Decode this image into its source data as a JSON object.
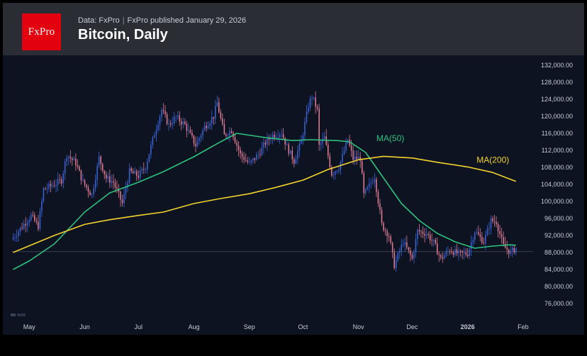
{
  "header": {
    "logo_text": "FxPro",
    "data_source": "Data: FxPro",
    "published": "FxPro published January 29, 2026",
    "title": "Bitcoin, Daily"
  },
  "colors": {
    "background": "#0d1320",
    "header_bg": "#2a2d33",
    "logo_red": "#e3000f",
    "candle_up": "#3b63d6",
    "candle_down": "#e07b93",
    "ma50": "#2ec27e",
    "ma200": "#f2d22e",
    "axis_text": "#c8ccd4"
  },
  "chart_data": {
    "type": "candlestick",
    "title": "Bitcoin, Daily",
    "ylim": [
      74000,
      133000
    ],
    "y_ticks": [
      {
        "value": 132000,
        "label": "132,000.00"
      },
      {
        "value": 128000,
        "label": "128,000.00"
      },
      {
        "value": 124000,
        "label": "124,000.00"
      },
      {
        "value": 120000,
        "label": "120,000.00"
      },
      {
        "value": 116000,
        "label": "116,000.00"
      },
      {
        "value": 112000,
        "label": "112,000.00"
      },
      {
        "value": 108000,
        "label": "108,000.00"
      },
      {
        "value": 104000,
        "label": "104,000.00"
      },
      {
        "value": 100000,
        "label": "100,000.00"
      },
      {
        "value": 96000,
        "label": "96,000.00"
      },
      {
        "value": 92000,
        "label": "92,000.00"
      },
      {
        "value": 88000,
        "label": "88,000.00"
      },
      {
        "value": 84000,
        "label": "84,000.00"
      },
      {
        "value": 80000,
        "label": "80,000.00"
      },
      {
        "value": 76000,
        "label": "76,000.00"
      }
    ],
    "x_labels": [
      {
        "date": "2025-05-01",
        "label": "May",
        "bold": false
      },
      {
        "date": "2025-06-01",
        "label": "Jun",
        "bold": false
      },
      {
        "date": "2025-07-01",
        "label": "Jul",
        "bold": false
      },
      {
        "date": "2025-08-01",
        "label": "Aug",
        "bold": false
      },
      {
        "date": "2025-09-01",
        "label": "Sep",
        "bold": false
      },
      {
        "date": "2025-10-01",
        "label": "Oct",
        "bold": false
      },
      {
        "date": "2025-11-01",
        "label": "Nov",
        "bold": false
      },
      {
        "date": "2025-12-01",
        "label": "Dec",
        "bold": false
      },
      {
        "date": "2026-01-01",
        "label": "2026",
        "bold": true
      },
      {
        "date": "2026-02-01",
        "label": "Feb",
        "bold": false
      }
    ],
    "x_range": [
      "2025-04-21",
      "2026-02-05"
    ],
    "reference_price": 88200,
    "annotations": [
      {
        "label": "MA(50)",
        "series": "MA(50)"
      },
      {
        "label": "MA(200)",
        "series": "MA(200)"
      }
    ],
    "close_path": [
      [
        "2025-04-22",
        91500
      ],
      [
        "2025-04-28",
        94600
      ],
      [
        "2025-05-02",
        96600
      ],
      [
        "2025-05-06",
        94200
      ],
      [
        "2025-05-09",
        102800
      ],
      [
        "2025-05-14",
        103800
      ],
      [
        "2025-05-19",
        105000
      ],
      [
        "2025-05-22",
        111000
      ],
      [
        "2025-05-27",
        109000
      ],
      [
        "2025-05-31",
        104500
      ],
      [
        "2025-06-05",
        101500
      ],
      [
        "2025-06-09",
        110200
      ],
      [
        "2025-06-13",
        105500
      ],
      [
        "2025-06-17",
        104500
      ],
      [
        "2025-06-22",
        99500
      ],
      [
        "2025-06-26",
        107000
      ],
      [
        "2025-07-01",
        106000
      ],
      [
        "2025-07-05",
        108200
      ],
      [
        "2025-07-10",
        116000
      ],
      [
        "2025-07-14",
        121500
      ],
      [
        "2025-07-18",
        118000
      ],
      [
        "2025-07-22",
        119800
      ],
      [
        "2025-07-27",
        118000
      ],
      [
        "2025-08-02",
        113200
      ],
      [
        "2025-08-07",
        117500
      ],
      [
        "2025-08-12",
        120000
      ],
      [
        "2025-08-14",
        123200
      ],
      [
        "2025-08-18",
        115500
      ],
      [
        "2025-08-22",
        116800
      ],
      [
        "2025-08-27",
        111000
      ],
      [
        "2025-09-01",
        108800
      ],
      [
        "2025-09-06",
        111000
      ],
      [
        "2025-09-10",
        113800
      ],
      [
        "2025-09-14",
        115500
      ],
      [
        "2025-09-19",
        116200
      ],
      [
        "2025-09-22",
        112800
      ],
      [
        "2025-09-26",
        109500
      ],
      [
        "2025-09-30",
        114000
      ],
      [
        "2025-10-04",
        122500
      ],
      [
        "2025-10-06",
        124800
      ],
      [
        "2025-10-09",
        121500
      ],
      [
        "2025-10-10",
        113000
      ],
      [
        "2025-10-13",
        115000
      ],
      [
        "2025-10-17",
        106500
      ],
      [
        "2025-10-21",
        108000
      ],
      [
        "2025-10-26",
        114500
      ],
      [
        "2025-10-29",
        110000
      ],
      [
        "2025-11-02",
        110200
      ],
      [
        "2025-11-04",
        101500
      ],
      [
        "2025-11-10",
        105800
      ],
      [
        "2025-11-14",
        94500
      ],
      [
        "2025-11-18",
        92000
      ],
      [
        "2025-11-21",
        85000
      ],
      [
        "2025-11-26",
        90500
      ],
      [
        "2025-12-01",
        86500
      ],
      [
        "2025-12-04",
        93000
      ],
      [
        "2025-12-09",
        92500
      ],
      [
        "2025-12-13",
        90300
      ],
      [
        "2025-12-17",
        86500
      ],
      [
        "2025-12-22",
        88600
      ],
      [
        "2025-12-27",
        87600
      ],
      [
        "2026-01-01",
        87800
      ],
      [
        "2026-01-05",
        93000
      ],
      [
        "2026-01-10",
        90500
      ],
      [
        "2026-01-14",
        95500
      ],
      [
        "2026-01-17",
        95200
      ],
      [
        "2026-01-21",
        89500
      ],
      [
        "2026-01-25",
        88000
      ],
      [
        "2026-01-28",
        89000
      ]
    ],
    "series": [
      {
        "name": "MA(50)",
        "points": [
          [
            "2025-04-22",
            84000
          ],
          [
            "2025-05-01",
            86000
          ],
          [
            "2025-05-15",
            90000
          ],
          [
            "2025-06-01",
            97500
          ],
          [
            "2025-06-15",
            102000
          ],
          [
            "2025-07-01",
            104500
          ],
          [
            "2025-07-15",
            107000
          ],
          [
            "2025-08-01",
            110500
          ],
          [
            "2025-08-15",
            113800
          ],
          [
            "2025-08-25",
            116000
          ],
          [
            "2025-09-10",
            115000
          ],
          [
            "2025-09-25",
            114300
          ],
          [
            "2025-10-05",
            114500
          ],
          [
            "2025-10-20",
            114300
          ],
          [
            "2025-10-27",
            114000
          ],
          [
            "2025-11-05",
            111500
          ],
          [
            "2025-11-15",
            105500
          ],
          [
            "2025-11-25",
            99500
          ],
          [
            "2025-12-05",
            95500
          ],
          [
            "2025-12-15",
            92500
          ],
          [
            "2025-12-25",
            90500
          ],
          [
            "2026-01-05",
            89000
          ],
          [
            "2026-01-15",
            89500
          ],
          [
            "2026-01-25",
            89800
          ],
          [
            "2026-01-28",
            89700
          ]
        ]
      },
      {
        "name": "MA(200)",
        "points": [
          [
            "2025-04-22",
            88000
          ],
          [
            "2025-05-15",
            92000
          ],
          [
            "2025-06-01",
            94600
          ],
          [
            "2025-06-15",
            95700
          ],
          [
            "2025-07-01",
            96700
          ],
          [
            "2025-07-15",
            97500
          ],
          [
            "2025-08-01",
            99500
          ],
          [
            "2025-08-15",
            100600
          ],
          [
            "2025-09-01",
            101800
          ],
          [
            "2025-09-15",
            103200
          ],
          [
            "2025-10-01",
            105000
          ],
          [
            "2025-10-15",
            107500
          ],
          [
            "2025-11-01",
            109800
          ],
          [
            "2025-11-15",
            110600
          ],
          [
            "2025-12-01",
            110200
          ],
          [
            "2025-12-15",
            109200
          ],
          [
            "2026-01-01",
            108100
          ],
          [
            "2026-01-15",
            106800
          ],
          [
            "2026-01-28",
            104700
          ]
        ]
      }
    ]
  }
}
